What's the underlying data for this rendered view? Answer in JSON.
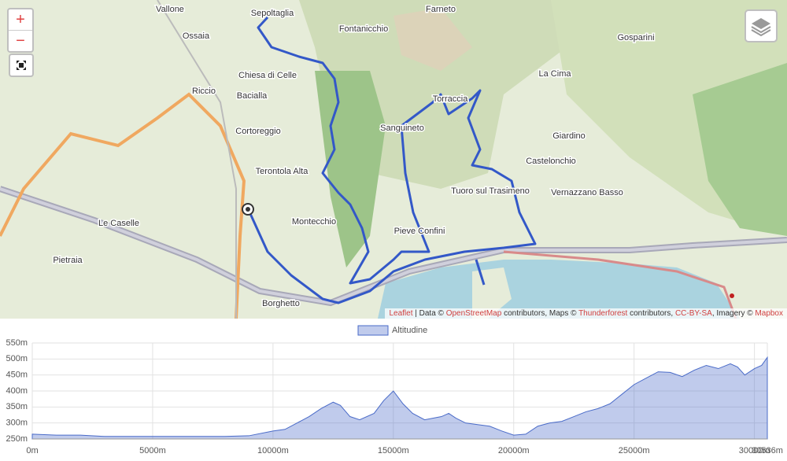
{
  "map": {
    "zoom_in": "+",
    "zoom_out": "−",
    "places": [
      "Vallone",
      "Sepoltaglia",
      "Farneto",
      "Fontanicchio",
      "Gosparini",
      "Ossaia",
      "Chiesa di Celle",
      "La Cima",
      "Riccio",
      "Bacialla",
      "Torraccia",
      "Cortoreggio",
      "Sanguineto",
      "Giardino",
      "Castelonchio",
      "Terontola Alta",
      "Tuoro sul Trasimeno",
      "Vernazzano Basso",
      "Le Caselle",
      "Montecchio",
      "Pieve Confini",
      "Pietraia",
      "Borghetto"
    ],
    "attribution": [
      "Leaflet",
      " | Data © ",
      "OpenStreetMap",
      " contributors, Maps © ",
      "Thunderforest",
      " contributors, ",
      "CC-BY-SA",
      ", Imagery © ",
      "Mapbox"
    ]
  },
  "chart_data": {
    "type": "area",
    "x": [
      0,
      1000,
      2000,
      3000,
      4000,
      5000,
      6000,
      7000,
      8000,
      9000,
      10000,
      10500,
      11000,
      11500,
      12000,
      12500,
      12800,
      13200,
      13600,
      14200,
      14600,
      15000,
      15400,
      15800,
      16300,
      17000,
      17300,
      17600,
      18000,
      18500,
      19000,
      19500,
      20000,
      20500,
      21000,
      21500,
      22000,
      22500,
      23000,
      23500,
      24000,
      24500,
      25000,
      25500,
      26000,
      26500,
      27000,
      27500,
      28000,
      28500,
      29000,
      29300,
      29600,
      30000,
      30300,
      30536
    ],
    "series": [
      {
        "name": "Altitudine",
        "color": "#4a6bc8",
        "values": [
          265,
          262,
          262,
          258,
          258,
          258,
          258,
          258,
          258,
          260,
          275,
          280,
          300,
          320,
          345,
          365,
          355,
          320,
          310,
          330,
          370,
          400,
          360,
          330,
          310,
          320,
          330,
          315,
          300,
          295,
          290,
          275,
          262,
          265,
          290,
          300,
          305,
          320,
          335,
          345,
          360,
          390,
          420,
          440,
          460,
          458,
          445,
          465,
          480,
          470,
          485,
          475,
          450,
          470,
          480,
          505
        ]
      }
    ],
    "xlim": [
      0,
      30536
    ],
    "ylim": [
      250,
      550
    ],
    "xticks": [
      {
        "value": 0,
        "label": "0m"
      },
      {
        "value": 5000,
        "label": "5000m"
      },
      {
        "value": 10000,
        "label": "10000m"
      },
      {
        "value": 15000,
        "label": "15000m"
      },
      {
        "value": 20000,
        "label": "20000m"
      },
      {
        "value": 25000,
        "label": "25000m"
      },
      {
        "value": 30000,
        "label": "30000m"
      },
      {
        "value": 30536,
        "label": "30536m"
      }
    ],
    "yticks": [
      {
        "value": 250,
        "label": "250m"
      },
      {
        "value": 300,
        "label": "300m"
      },
      {
        "value": 350,
        "label": "350m"
      },
      {
        "value": 400,
        "label": "400m"
      },
      {
        "value": 450,
        "label": "450m"
      },
      {
        "value": 500,
        "label": "500m"
      },
      {
        "value": 550,
        "label": "550m"
      }
    ],
    "grid": true
  }
}
